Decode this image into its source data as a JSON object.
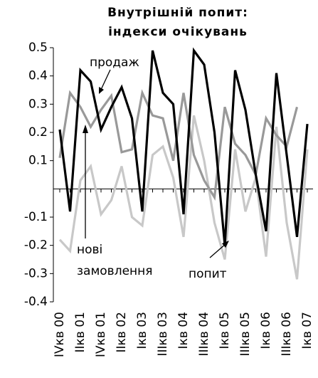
{
  "chart_data": {
    "type": "line",
    "title": "Внутрішній попит:",
    "subtitle": "індекси очікувань",
    "categories": [
      "IVкв 00",
      null,
      "IIкв 01",
      null,
      "IVкв 01",
      null,
      "IIкв 02",
      null,
      "Iкв 03",
      null,
      "IIIкв 03",
      null,
      "Iкв 04",
      null,
      "IIIкв 04",
      null,
      "Iкв 05",
      null,
      "IIIкв 05",
      null,
      "Iкв 06",
      null,
      "IIIкв 06",
      null,
      "Iкв 07"
    ],
    "series": [
      {
        "name": "продаж",
        "color": "#000000",
        "values": [
          0.21,
          -0.08,
          0.42,
          0.38,
          0.21,
          0.29,
          0.36,
          0.25,
          -0.08,
          0.49,
          0.34,
          0.3,
          -0.09,
          0.49,
          0.44,
          0.2,
          -0.2,
          0.42,
          0.28,
          0.05,
          -0.15,
          0.41,
          0.12,
          -0.17,
          0.23
        ]
      },
      {
        "name": "нові замовлення",
        "color": "#999999",
        "values": [
          0.11,
          0.34,
          0.29,
          0.22,
          0.28,
          0.33,
          0.13,
          0.14,
          0.34,
          0.26,
          0.25,
          0.1,
          0.34,
          0.12,
          0.03,
          -0.03,
          0.29,
          0.16,
          0.12,
          0.05,
          0.25,
          0.19,
          0.15,
          0.29,
          null
        ]
      },
      {
        "name": "попит",
        "color": "#c8c8c8",
        "values": [
          -0.18,
          -0.22,
          0.03,
          0.08,
          -0.09,
          -0.04,
          0.08,
          -0.1,
          -0.13,
          0.12,
          0.15,
          0.04,
          -0.17,
          0.26,
          0.1,
          -0.12,
          -0.25,
          0.14,
          -0.08,
          0.04,
          -0.24,
          0.22,
          -0.12,
          -0.32,
          0.14
        ]
      }
    ],
    "annotations": [
      "продаж",
      "нові",
      "замовлення",
      "попит"
    ],
    "ylim": [
      -0.4,
      0.5
    ],
    "yticks": [
      0.5,
      0.4,
      0.3,
      0.2,
      0.1,
      -0.1,
      -0.2,
      -0.3,
      -0.4
    ]
  }
}
